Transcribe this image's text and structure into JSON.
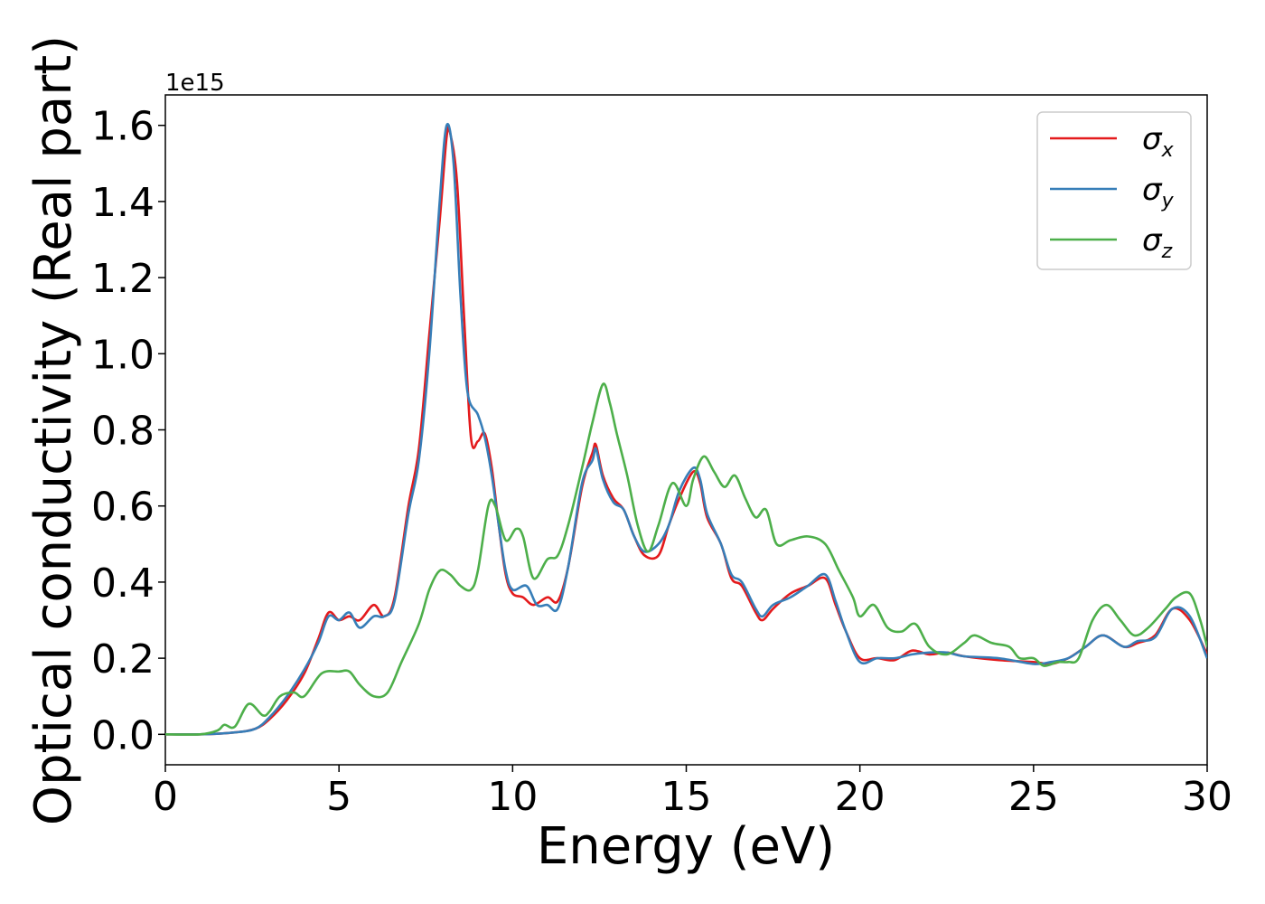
{
  "chart_data": {
    "type": "line",
    "xlabel": "Energy (eV)",
    "ylabel": "Optical conductivity (Real part)",
    "y_offset_label": "1e15",
    "xlim": [
      0,
      30
    ],
    "ylim": [
      -0.08,
      1.68
    ],
    "x_ticks": [
      0,
      5,
      10,
      15,
      20,
      25,
      30
    ],
    "x_tick_labels": [
      "0",
      "5",
      "10",
      "15",
      "20",
      "25",
      "30"
    ],
    "y_ticks": [
      0.0,
      0.2,
      0.4,
      0.6,
      0.8,
      1.0,
      1.2,
      1.4,
      1.6
    ],
    "y_tick_labels": [
      "0.0",
      "0.2",
      "0.4",
      "0.6",
      "0.8",
      "1.0",
      "1.2",
      "1.4",
      "1.6"
    ],
    "grid": false,
    "legend_position": "top-right",
    "series": [
      {
        "name": "σx",
        "symbol": "σ",
        "subscript": "x",
        "color": "#e41a1c",
        "points": [
          [
            0,
            0.0
          ],
          [
            1,
            0.0
          ],
          [
            2,
            0.005
          ],
          [
            2.6,
            0.015
          ],
          [
            3,
            0.04
          ],
          [
            3.5,
            0.09
          ],
          [
            4,
            0.16
          ],
          [
            4.4,
            0.25
          ],
          [
            4.7,
            0.32
          ],
          [
            5,
            0.3
          ],
          [
            5.3,
            0.31
          ],
          [
            5.6,
            0.3
          ],
          [
            6,
            0.34
          ],
          [
            6.3,
            0.31
          ],
          [
            6.6,
            0.36
          ],
          [
            7,
            0.6
          ],
          [
            7.3,
            0.75
          ],
          [
            7.6,
            1.05
          ],
          [
            7.9,
            1.35
          ],
          [
            8.1,
            1.57
          ],
          [
            8.2,
            1.58
          ],
          [
            8.4,
            1.45
          ],
          [
            8.6,
            1.1
          ],
          [
            8.8,
            0.78
          ],
          [
            9,
            0.77
          ],
          [
            9.2,
            0.79
          ],
          [
            9.4,
            0.7
          ],
          [
            9.6,
            0.55
          ],
          [
            9.8,
            0.42
          ],
          [
            10,
            0.37
          ],
          [
            10.3,
            0.36
          ],
          [
            10.6,
            0.34
          ],
          [
            11,
            0.36
          ],
          [
            11.3,
            0.35
          ],
          [
            11.6,
            0.44
          ],
          [
            12,
            0.65
          ],
          [
            12.3,
            0.74
          ],
          [
            12.4,
            0.76
          ],
          [
            12.6,
            0.68
          ],
          [
            12.9,
            0.62
          ],
          [
            13.2,
            0.59
          ],
          [
            13.5,
            0.52
          ],
          [
            13.8,
            0.47
          ],
          [
            14.2,
            0.47
          ],
          [
            14.5,
            0.55
          ],
          [
            14.8,
            0.62
          ],
          [
            15.2,
            0.69
          ],
          [
            15.4,
            0.66
          ],
          [
            15.6,
            0.57
          ],
          [
            16,
            0.5
          ],
          [
            16.3,
            0.41
          ],
          [
            16.6,
            0.39
          ],
          [
            17,
            0.32
          ],
          [
            17.2,
            0.3
          ],
          [
            17.5,
            0.33
          ],
          [
            18,
            0.37
          ],
          [
            18.5,
            0.39
          ],
          [
            19,
            0.41
          ],
          [
            19.3,
            0.34
          ],
          [
            19.6,
            0.27
          ],
          [
            20,
            0.2
          ],
          [
            20.5,
            0.2
          ],
          [
            21,
            0.195
          ],
          [
            21.5,
            0.22
          ],
          [
            22,
            0.21
          ],
          [
            22.5,
            0.215
          ],
          [
            23,
            0.205
          ],
          [
            24,
            0.195
          ],
          [
            25,
            0.19
          ],
          [
            25.5,
            0.185
          ],
          [
            26,
            0.2
          ],
          [
            26.5,
            0.23
          ],
          [
            27,
            0.26
          ],
          [
            27.6,
            0.23
          ],
          [
            28,
            0.24
          ],
          [
            28.5,
            0.26
          ],
          [
            29,
            0.33
          ],
          [
            29.5,
            0.3
          ],
          [
            30,
            0.21
          ]
        ]
      },
      {
        "name": "σy",
        "symbol": "σ",
        "subscript": "y",
        "color": "#377eb8",
        "points": [
          [
            0,
            0.0
          ],
          [
            1,
            0.0
          ],
          [
            2,
            0.005
          ],
          [
            2.6,
            0.015
          ],
          [
            3,
            0.045
          ],
          [
            3.5,
            0.1
          ],
          [
            4,
            0.17
          ],
          [
            4.4,
            0.24
          ],
          [
            4.7,
            0.31
          ],
          [
            5,
            0.3
          ],
          [
            5.3,
            0.32
          ],
          [
            5.6,
            0.28
          ],
          [
            6,
            0.31
          ],
          [
            6.3,
            0.31
          ],
          [
            6.6,
            0.35
          ],
          [
            7,
            0.58
          ],
          [
            7.3,
            0.72
          ],
          [
            7.6,
            1.0
          ],
          [
            7.9,
            1.4
          ],
          [
            8.1,
            1.6
          ],
          [
            8.3,
            1.5
          ],
          [
            8.5,
            1.15
          ],
          [
            8.7,
            0.9
          ],
          [
            9,
            0.84
          ],
          [
            9.2,
            0.78
          ],
          [
            9.4,
            0.68
          ],
          [
            9.6,
            0.55
          ],
          [
            9.8,
            0.43
          ],
          [
            10,
            0.38
          ],
          [
            10.4,
            0.39
          ],
          [
            10.7,
            0.34
          ],
          [
            11,
            0.34
          ],
          [
            11.3,
            0.33
          ],
          [
            11.6,
            0.44
          ],
          [
            12,
            0.66
          ],
          [
            12.3,
            0.72
          ],
          [
            12.4,
            0.75
          ],
          [
            12.6,
            0.67
          ],
          [
            12.9,
            0.61
          ],
          [
            13.2,
            0.59
          ],
          [
            13.5,
            0.52
          ],
          [
            13.8,
            0.48
          ],
          [
            14.2,
            0.5
          ],
          [
            14.5,
            0.55
          ],
          [
            14.8,
            0.64
          ],
          [
            15.2,
            0.7
          ],
          [
            15.4,
            0.67
          ],
          [
            15.6,
            0.58
          ],
          [
            16,
            0.5
          ],
          [
            16.3,
            0.42
          ],
          [
            16.6,
            0.4
          ],
          [
            17,
            0.33
          ],
          [
            17.2,
            0.31
          ],
          [
            17.5,
            0.34
          ],
          [
            18,
            0.36
          ],
          [
            18.5,
            0.39
          ],
          [
            19,
            0.42
          ],
          [
            19.3,
            0.35
          ],
          [
            19.6,
            0.27
          ],
          [
            20,
            0.19
          ],
          [
            20.5,
            0.2
          ],
          [
            21,
            0.2
          ],
          [
            21.5,
            0.21
          ],
          [
            22,
            0.215
          ],
          [
            22.5,
            0.215
          ],
          [
            23,
            0.205
          ],
          [
            24,
            0.2
          ],
          [
            25,
            0.185
          ],
          [
            25.5,
            0.19
          ],
          [
            26,
            0.2
          ],
          [
            26.5,
            0.23
          ],
          [
            27,
            0.26
          ],
          [
            27.6,
            0.23
          ],
          [
            28,
            0.245
          ],
          [
            28.5,
            0.255
          ],
          [
            29,
            0.33
          ],
          [
            29.5,
            0.31
          ],
          [
            30,
            0.2
          ]
        ]
      },
      {
        "name": "σz",
        "symbol": "σ",
        "subscript": "z",
        "color": "#4daf4a",
        "points": [
          [
            0,
            0.0
          ],
          [
            1,
            0.0
          ],
          [
            1.5,
            0.01
          ],
          [
            1.7,
            0.025
          ],
          [
            2,
            0.02
          ],
          [
            2.4,
            0.08
          ],
          [
            2.8,
            0.05
          ],
          [
            3,
            0.06
          ],
          [
            3.3,
            0.1
          ],
          [
            3.7,
            0.11
          ],
          [
            4,
            0.1
          ],
          [
            4.5,
            0.16
          ],
          [
            5,
            0.165
          ],
          [
            5.3,
            0.165
          ],
          [
            5.6,
            0.13
          ],
          [
            6,
            0.1
          ],
          [
            6.4,
            0.11
          ],
          [
            6.8,
            0.19
          ],
          [
            7.3,
            0.29
          ],
          [
            7.6,
            0.38
          ],
          [
            7.9,
            0.43
          ],
          [
            8.2,
            0.42
          ],
          [
            8.5,
            0.39
          ],
          [
            8.8,
            0.38
          ],
          [
            9,
            0.43
          ],
          [
            9.3,
            0.6
          ],
          [
            9.5,
            0.6
          ],
          [
            9.8,
            0.51
          ],
          [
            10.1,
            0.54
          ],
          [
            10.3,
            0.52
          ],
          [
            10.6,
            0.41
          ],
          [
            11,
            0.46
          ],
          [
            11.3,
            0.47
          ],
          [
            11.6,
            0.55
          ],
          [
            12,
            0.7
          ],
          [
            12.3,
            0.82
          ],
          [
            12.6,
            0.92
          ],
          [
            12.8,
            0.87
          ],
          [
            13,
            0.79
          ],
          [
            13.3,
            0.68
          ],
          [
            13.6,
            0.55
          ],
          [
            13.9,
            0.48
          ],
          [
            14.2,
            0.55
          ],
          [
            14.6,
            0.66
          ],
          [
            15,
            0.6
          ],
          [
            15.2,
            0.67
          ],
          [
            15.5,
            0.73
          ],
          [
            15.8,
            0.69
          ],
          [
            16.1,
            0.65
          ],
          [
            16.4,
            0.68
          ],
          [
            16.7,
            0.62
          ],
          [
            17,
            0.57
          ],
          [
            17.3,
            0.59
          ],
          [
            17.6,
            0.5
          ],
          [
            18,
            0.51
          ],
          [
            18.5,
            0.52
          ],
          [
            19,
            0.5
          ],
          [
            19.4,
            0.43
          ],
          [
            19.8,
            0.36
          ],
          [
            20,
            0.31
          ],
          [
            20.4,
            0.34
          ],
          [
            20.8,
            0.28
          ],
          [
            21.2,
            0.27
          ],
          [
            21.6,
            0.29
          ],
          [
            22,
            0.23
          ],
          [
            22.5,
            0.21
          ],
          [
            23,
            0.24
          ],
          [
            23.3,
            0.26
          ],
          [
            23.8,
            0.24
          ],
          [
            24.3,
            0.23
          ],
          [
            24.6,
            0.2
          ],
          [
            25,
            0.2
          ],
          [
            25.3,
            0.18
          ],
          [
            25.7,
            0.19
          ],
          [
            26,
            0.19
          ],
          [
            26.3,
            0.2
          ],
          [
            26.7,
            0.3
          ],
          [
            27.1,
            0.34
          ],
          [
            27.5,
            0.3
          ],
          [
            27.9,
            0.26
          ],
          [
            28.3,
            0.28
          ],
          [
            28.8,
            0.33
          ],
          [
            29.1,
            0.36
          ],
          [
            29.5,
            0.37
          ],
          [
            29.8,
            0.3
          ],
          [
            30,
            0.23
          ]
        ]
      }
    ]
  }
}
